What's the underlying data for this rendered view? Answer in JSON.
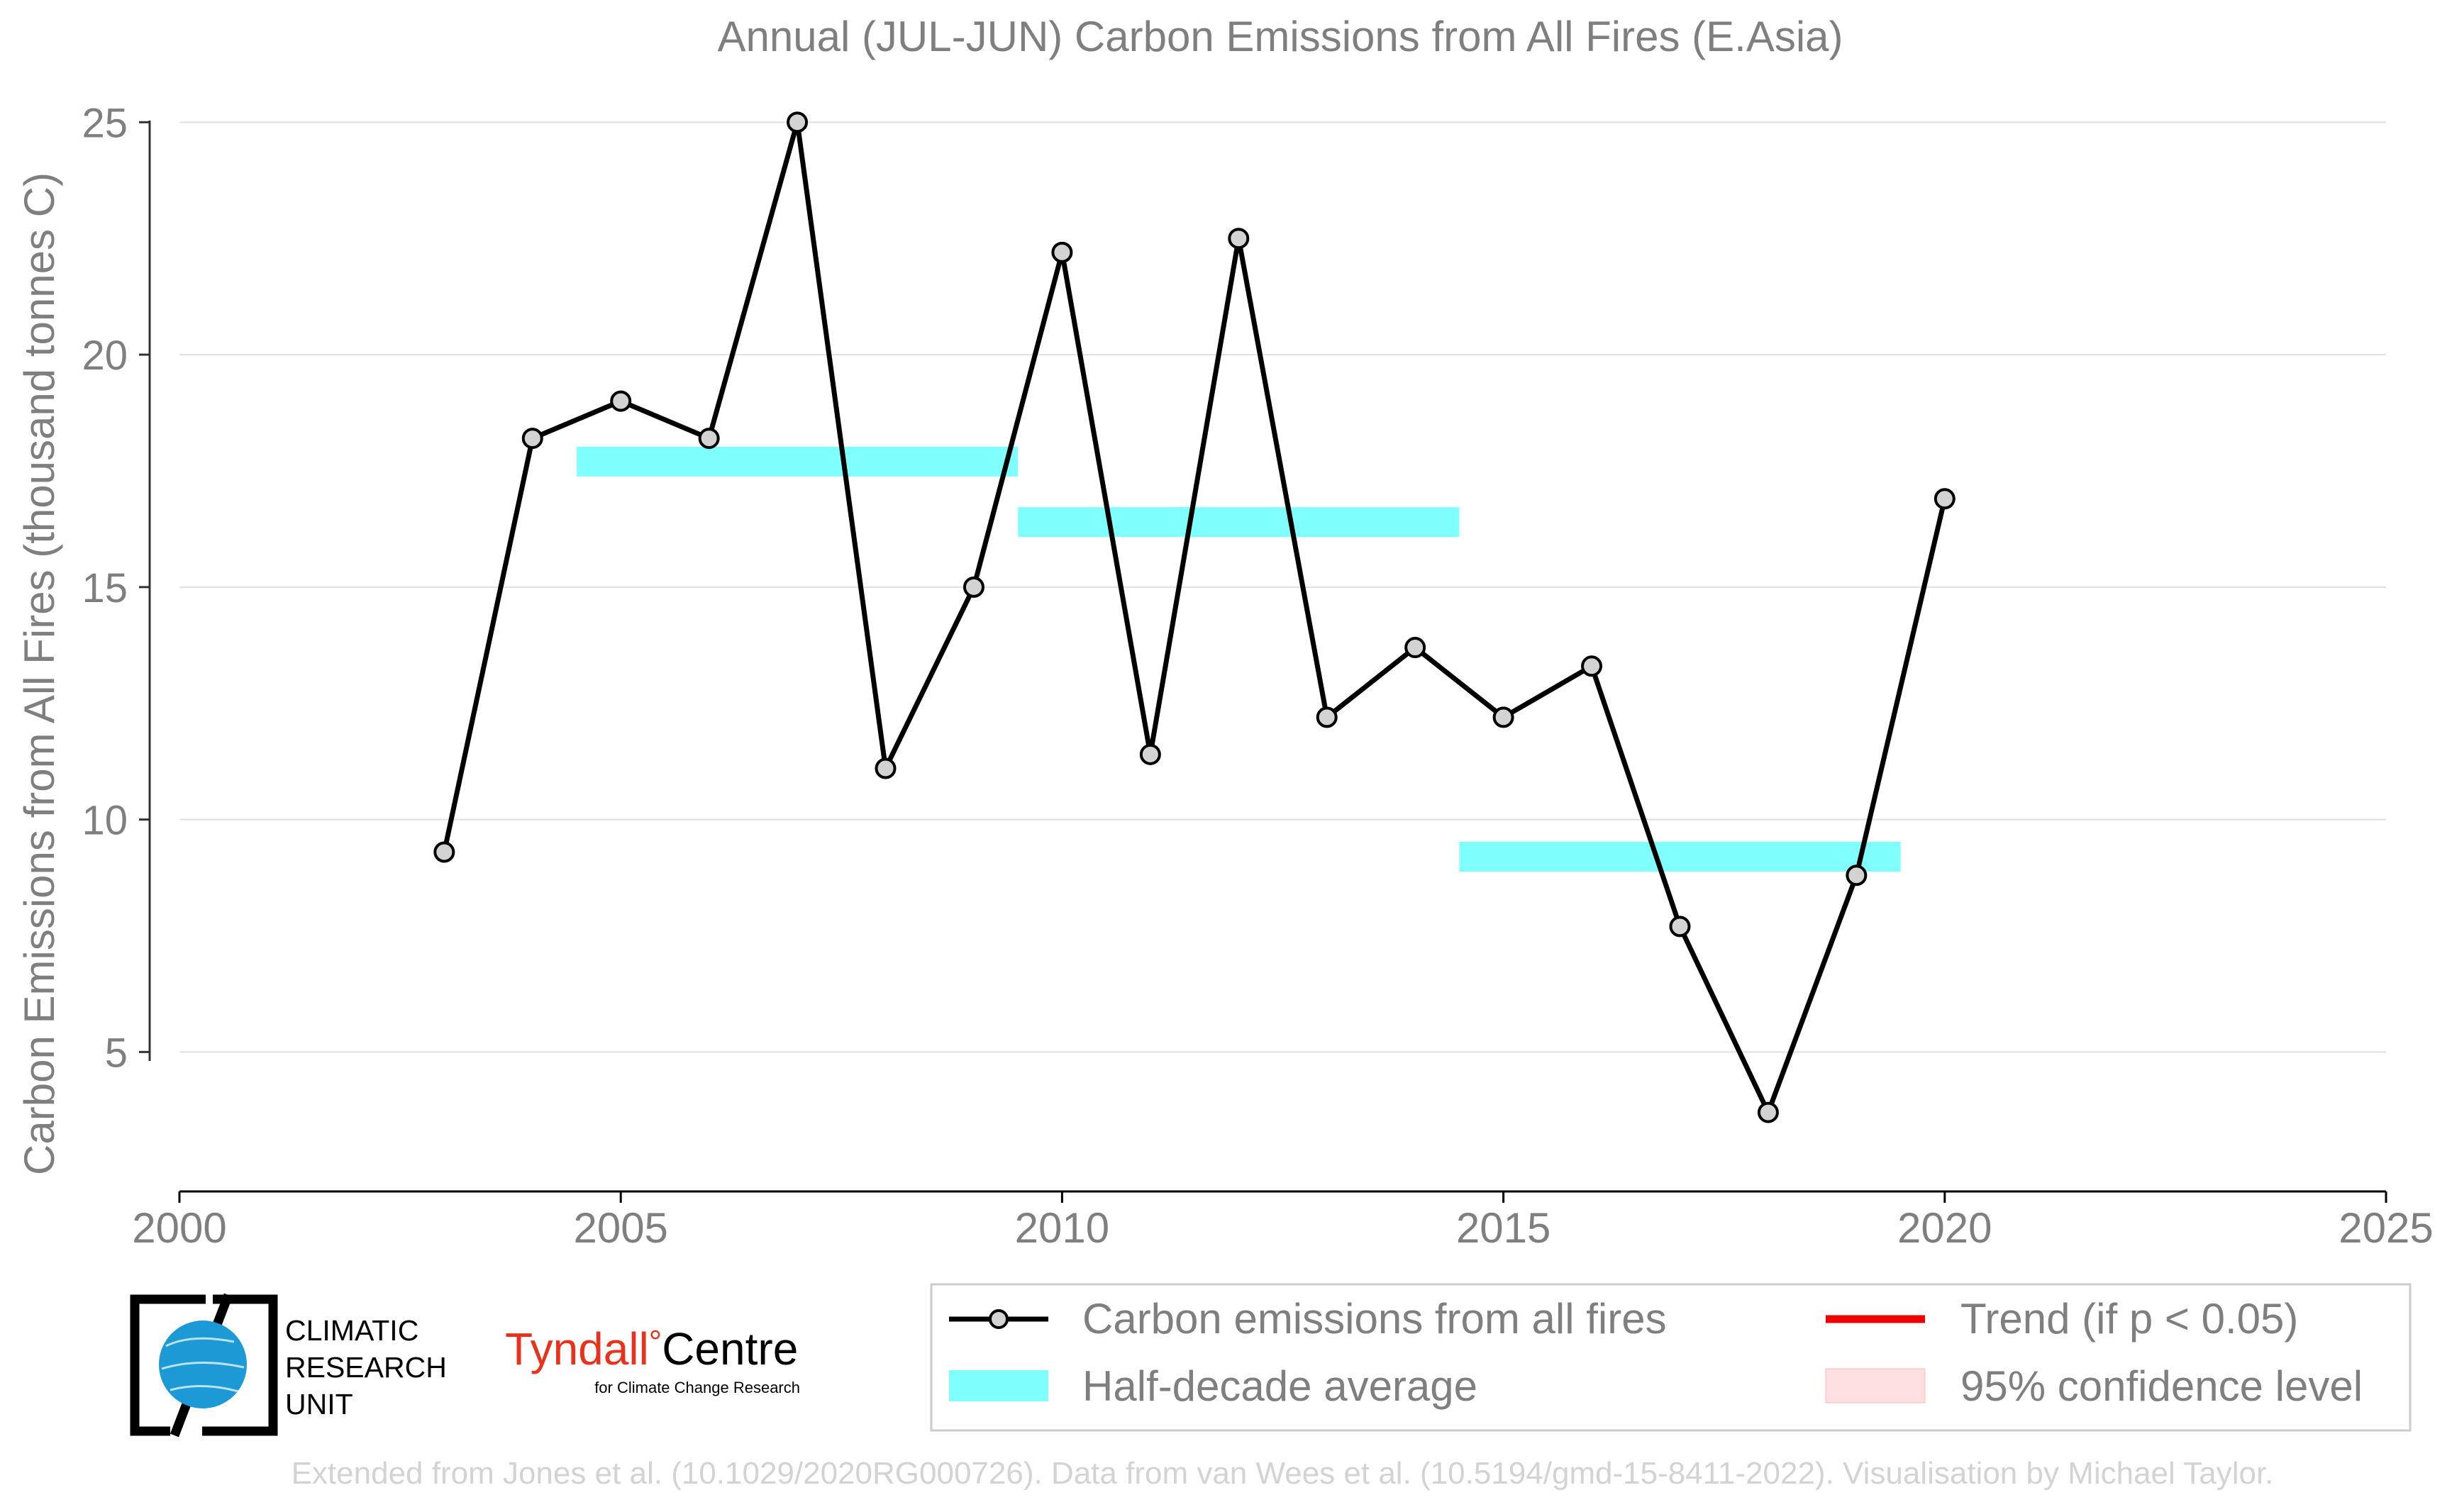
{
  "chart_data": {
    "type": "line",
    "title": "Annual (JUL-JUN) Carbon Emissions from All Fires (E.Asia)",
    "xlabel": "",
    "ylabel": "Carbon Emissions from All Fires (thousand tonnes C)",
    "xlim": [
      2000,
      2025
    ],
    "ylim": [
      2,
      26.5
    ],
    "x_ticks": [
      2000,
      2005,
      2010,
      2015,
      2020,
      2025
    ],
    "y_ticks": [
      5,
      10,
      15,
      20,
      25
    ],
    "grid": "horizontal",
    "legend_position": "bottom-right",
    "series": [
      {
        "name": "Carbon emissions from all fires",
        "color": "#000000",
        "marker_fill": "#d3d3d3",
        "x": [
          2003,
          2004,
          2005,
          2006,
          2007,
          2008,
          2009,
          2010,
          2011,
          2012,
          2013,
          2014,
          2015,
          2016,
          2017,
          2018,
          2019,
          2020
        ],
        "y": [
          9.3,
          18.2,
          19.0,
          18.2,
          25.0,
          11.1,
          15.0,
          22.2,
          11.4,
          22.5,
          12.2,
          13.7,
          12.2,
          13.3,
          7.7,
          3.7,
          8.8,
          16.9
        ]
      },
      {
        "name": "Half-decade average",
        "color": "#80ffff",
        "segments": [
          {
            "x_start": 2004.5,
            "x_end": 2009.5,
            "y": 17.7
          },
          {
            "x_start": 2009.5,
            "x_end": 2014.5,
            "y": 16.4
          },
          {
            "x_start": 2014.5,
            "x_end": 2019.5,
            "y": 9.2
          }
        ]
      }
    ],
    "legend": [
      {
        "label": "Carbon emissions from all fires",
        "kind": "line-marker",
        "color": "#000000"
      },
      {
        "label": "Trend (if p < 0.05)",
        "kind": "line",
        "color": "#ee0000"
      },
      {
        "label": "Half-decade average",
        "kind": "band",
        "color": "#80ffff"
      },
      {
        "label": "95% confidence level",
        "kind": "band",
        "color": "#ffe0e0"
      }
    ]
  },
  "logos": {
    "cru": [
      "CLIMATIC",
      "RESEARCH",
      "UNIT"
    ],
    "tyndall_main": "Tyndall",
    "tyndall_degree": "°",
    "tyndall_centre": "Centre",
    "tyndall_sub": "for Climate Change Research"
  },
  "footer": {
    "credit": "Extended from Jones et al. (10.1029/2020RG000726). Data from van Wees et al. (10.5194/gmd-15-8411-2022). Visualisation by Michael Taylor."
  },
  "colors": {
    "text": "#7f7f7f",
    "grid": "#e0e0e0",
    "cru_blue": "#1b9ad6",
    "tyndall_red": "#e8321c",
    "credit": "#d3d3d3"
  }
}
